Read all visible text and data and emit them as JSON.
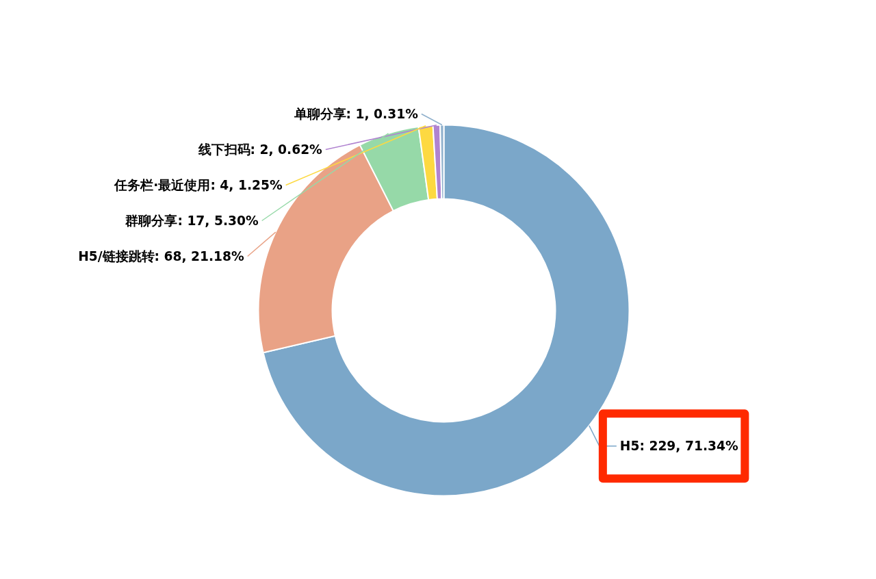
{
  "chart_data": {
    "type": "donut",
    "categories": [
      "H5",
      "H5/链接跳转",
      "群聊分享",
      "任务栏·最近使用",
      "线下扫码",
      "单聊分享"
    ],
    "values": [
      229,
      68,
      17,
      4,
      2,
      1
    ],
    "value_labels": [
      "229, 71.34%",
      "68, 21.18%",
      "17, 5.30%",
      "4, 1.25%",
      "2, 0.62%",
      "1, 0.31%"
    ],
    "colors": [
      "#7ba7c9",
      "#e9a286",
      "#96d9a8",
      "#fdd941",
      "#b083d0",
      "#8fb0cc"
    ],
    "legend": false
  }
}
